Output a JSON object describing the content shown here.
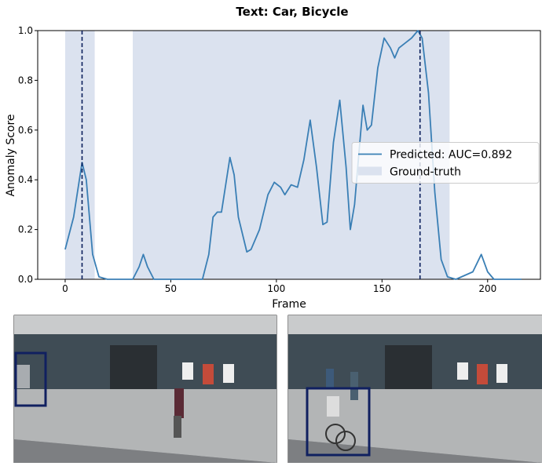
{
  "chart_data": {
    "type": "line",
    "title": "Text: Car, Bicycle",
    "xlabel": "Frame",
    "ylabel": "Anomaly Score",
    "x": [
      0,
      4,
      8,
      10,
      13,
      16,
      20,
      32,
      35,
      37,
      39,
      42,
      65,
      68,
      70,
      72,
      74,
      76,
      78,
      80,
      82,
      86,
      88,
      92,
      96,
      99,
      102,
      104,
      107,
      110,
      113,
      116,
      119,
      122,
      124,
      127,
      130,
      133,
      135,
      137,
      141,
      143,
      145,
      148,
      151,
      154,
      156,
      158,
      161,
      164,
      167,
      169,
      172,
      175,
      178,
      181,
      185,
      193,
      197,
      200,
      203,
      216
    ],
    "series": [
      {
        "name": "Predicted: AUC=0.892",
        "color": "#3a7fb5",
        "values": [
          0.12,
          0.25,
          0.47,
          0.4,
          0.1,
          0.01,
          0,
          0,
          0.05,
          0.1,
          0.05,
          0,
          0,
          0.1,
          0.25,
          0.27,
          0.27,
          0.38,
          0.49,
          0.42,
          0.25,
          0.11,
          0.12,
          0.2,
          0.34,
          0.39,
          0.37,
          0.34,
          0.38,
          0.37,
          0.48,
          0.64,
          0.45,
          0.22,
          0.23,
          0.55,
          0.72,
          0.45,
          0.2,
          0.3,
          0.7,
          0.6,
          0.62,
          0.85,
          0.97,
          0.93,
          0.89,
          0.93,
          0.95,
          0.97,
          1.0,
          0.97,
          0.75,
          0.35,
          0.08,
          0.01,
          0,
          0.03,
          0.1,
          0.03,
          0,
          0
        ]
      }
    ],
    "regions": {
      "name": "Ground-truth",
      "color": "#dbe2ef",
      "ranges": [
        [
          0,
          14
        ],
        [
          32,
          182
        ]
      ]
    },
    "vlines": [
      8,
      168
    ],
    "vline_color": "#0b1f5c",
    "xlim": [
      -13,
      225
    ],
    "xticks": [
      0,
      50,
      100,
      150,
      200
    ],
    "ylim": [
      0,
      1
    ],
    "yticks": [
      {
        "value": 0,
        "label": "0.0"
      },
      0.2,
      0.4,
      0.6,
      0.8,
      {
        "value": 1,
        "label": "1.0"
      }
    ],
    "legend": "center right"
  }
}
